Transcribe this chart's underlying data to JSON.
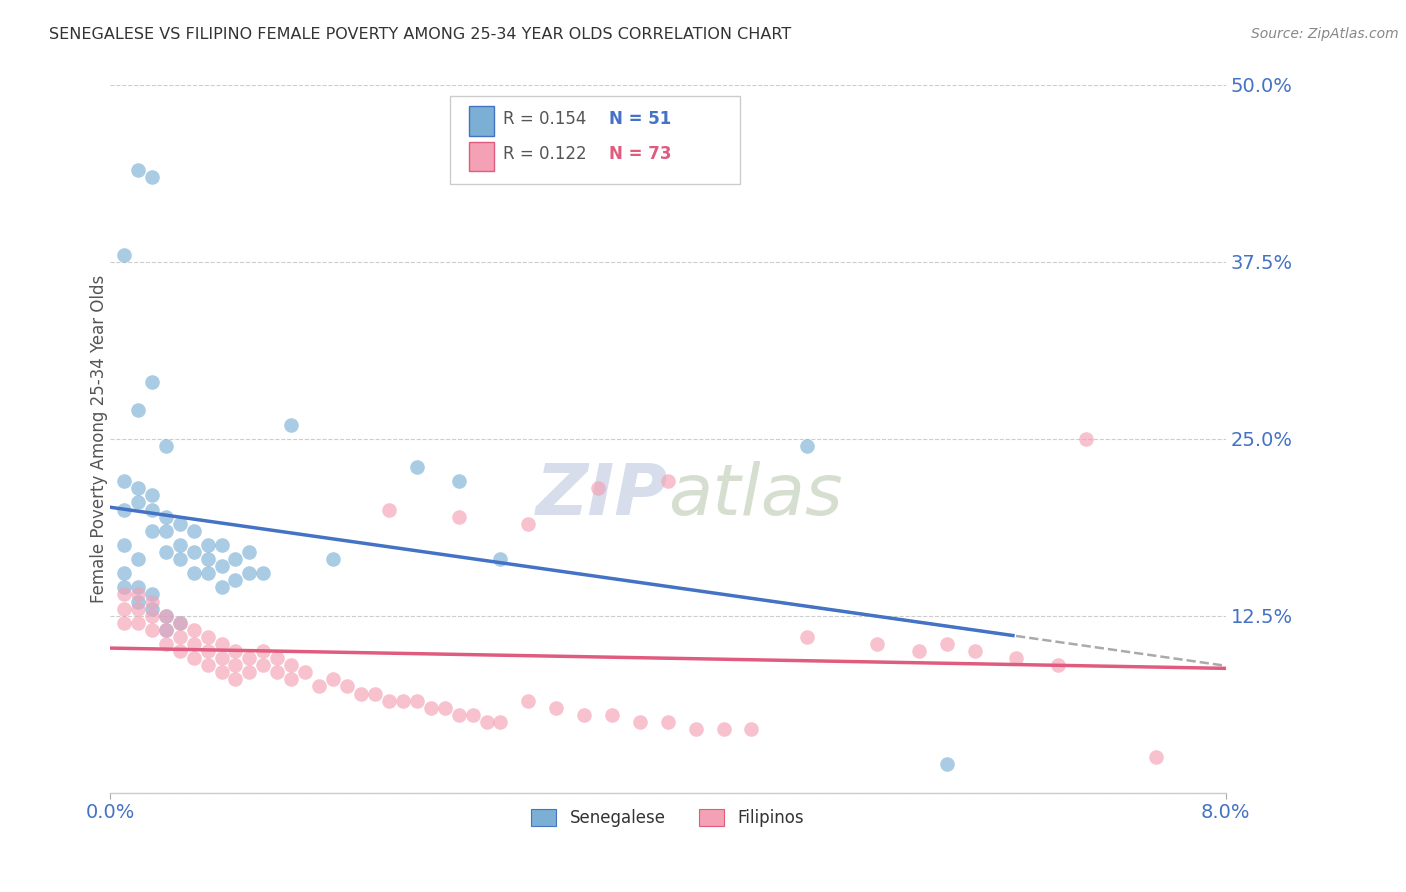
{
  "title": "SENEGALESE VS FILIPINO FEMALE POVERTY AMONG 25-34 YEAR OLDS CORRELATION CHART",
  "source": "Source: ZipAtlas.com",
  "ylabel": "Female Poverty Among 25-34 Year Olds",
  "xlim": [
    0.0,
    0.08
  ],
  "ylim": [
    0.0,
    0.5
  ],
  "yticks": [
    0.0,
    0.125,
    0.25,
    0.375,
    0.5
  ],
  "ytick_labels": [
    "",
    "12.5%",
    "25.0%",
    "37.5%",
    "50.0%"
  ],
  "senegalese_color": "#7bafd4",
  "filipino_color": "#f4a0b5",
  "trendline_senegalese_color": "#4472c4",
  "trendline_filipino_color": "#e05c7e",
  "background_color": "#ffffff",
  "grid_color": "#c8c8c8",
  "senegalese_R": "0.154",
  "senegalese_N": "51",
  "filipino_R": "0.122",
  "filipino_N": "73",
  "senegalese_x": [
    0.001,
    0.001,
    0.002,
    0.002,
    0.003,
    0.003,
    0.004,
    0.004,
    0.005,
    0.005,
    0.006,
    0.006,
    0.007,
    0.007,
    0.008,
    0.008,
    0.009,
    0.01,
    0.01,
    0.011,
    0.001,
    0.002,
    0.003,
    0.004,
    0.005,
    0.006,
    0.007,
    0.008,
    0.009,
    0.001,
    0.001,
    0.002,
    0.002,
    0.003,
    0.003,
    0.004,
    0.004,
    0.005,
    0.001,
    0.002,
    0.003,
    0.002,
    0.003,
    0.004,
    0.013,
    0.016,
    0.022,
    0.025,
    0.028,
    0.05,
    0.06
  ],
  "senegalese_y": [
    0.2,
    0.22,
    0.205,
    0.215,
    0.21,
    0.2,
    0.195,
    0.185,
    0.19,
    0.175,
    0.185,
    0.17,
    0.175,
    0.165,
    0.175,
    0.16,
    0.165,
    0.17,
    0.155,
    0.155,
    0.175,
    0.165,
    0.185,
    0.17,
    0.165,
    0.155,
    0.155,
    0.145,
    0.15,
    0.145,
    0.155,
    0.135,
    0.145,
    0.13,
    0.14,
    0.125,
    0.115,
    0.12,
    0.38,
    0.27,
    0.29,
    0.44,
    0.435,
    0.245,
    0.26,
    0.165,
    0.23,
    0.22,
    0.165,
    0.245,
    0.02
  ],
  "filipino_x": [
    0.001,
    0.001,
    0.001,
    0.002,
    0.002,
    0.002,
    0.003,
    0.003,
    0.003,
    0.004,
    0.004,
    0.004,
    0.005,
    0.005,
    0.005,
    0.006,
    0.006,
    0.006,
    0.007,
    0.007,
    0.007,
    0.008,
    0.008,
    0.008,
    0.009,
    0.009,
    0.009,
    0.01,
    0.01,
    0.011,
    0.011,
    0.012,
    0.012,
    0.013,
    0.013,
    0.014,
    0.015,
    0.016,
    0.017,
    0.018,
    0.019,
    0.02,
    0.021,
    0.022,
    0.023,
    0.024,
    0.025,
    0.026,
    0.027,
    0.028,
    0.03,
    0.032,
    0.034,
    0.036,
    0.038,
    0.04,
    0.042,
    0.044,
    0.046,
    0.05,
    0.055,
    0.058,
    0.06,
    0.062,
    0.065,
    0.068,
    0.02,
    0.025,
    0.03,
    0.035,
    0.04,
    0.07,
    0.075
  ],
  "filipino_y": [
    0.14,
    0.13,
    0.12,
    0.14,
    0.13,
    0.12,
    0.135,
    0.125,
    0.115,
    0.125,
    0.115,
    0.105,
    0.12,
    0.11,
    0.1,
    0.115,
    0.105,
    0.095,
    0.11,
    0.1,
    0.09,
    0.105,
    0.095,
    0.085,
    0.1,
    0.09,
    0.08,
    0.095,
    0.085,
    0.1,
    0.09,
    0.095,
    0.085,
    0.09,
    0.08,
    0.085,
    0.075,
    0.08,
    0.075,
    0.07,
    0.07,
    0.065,
    0.065,
    0.065,
    0.06,
    0.06,
    0.055,
    0.055,
    0.05,
    0.05,
    0.065,
    0.06,
    0.055,
    0.055,
    0.05,
    0.05,
    0.045,
    0.045,
    0.045,
    0.11,
    0.105,
    0.1,
    0.105,
    0.1,
    0.095,
    0.09,
    0.2,
    0.195,
    0.19,
    0.215,
    0.22,
    0.25,
    0.025
  ]
}
